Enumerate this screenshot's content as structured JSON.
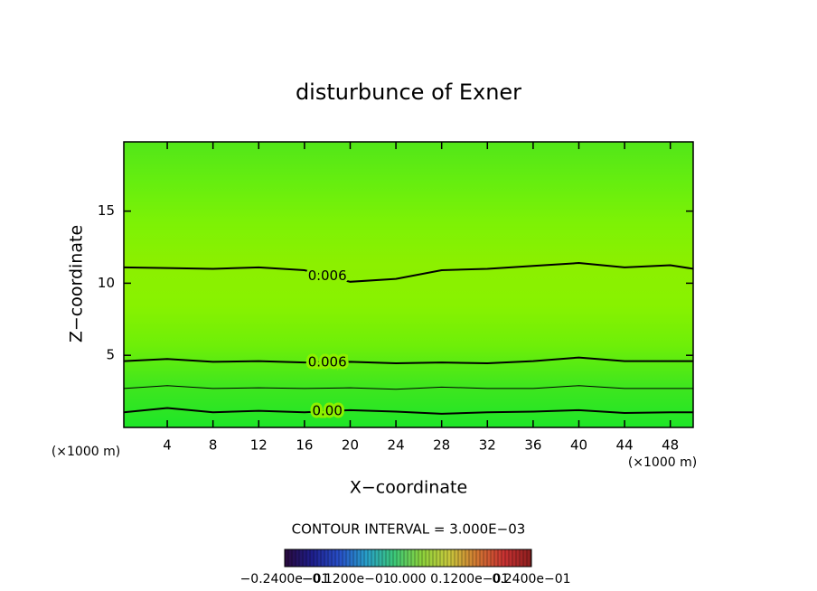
{
  "chart_data": {
    "type": "contour",
    "title": "disturbunce of Exner",
    "xlabel": "X−coordinate",
    "ylabel": "Z−coordinate",
    "x_unit_left": "(×1000 m)",
    "x_unit_right": "(×1000 m)",
    "xlim": [
      0.2,
      50
    ],
    "ylim": [
      0,
      19.8
    ],
    "xticks": [
      4,
      8,
      12,
      16,
      20,
      24,
      28,
      32,
      36,
      40,
      44,
      48
    ],
    "yticks": [
      5,
      10,
      15
    ],
    "fill_colors": [
      "#52e619",
      "#66ee0f",
      "#7df205",
      "#8cf000",
      "#88f200",
      "#6eef08",
      "#3fe61e",
      "#1ee628"
    ],
    "contours": [
      {
        "label": "0.006",
        "line_width": 2,
        "x": [
          0.2,
          4,
          8,
          12,
          16,
          20,
          24,
          28,
          32,
          36,
          40,
          44,
          48,
          50
        ],
        "y": [
          11.1,
          11.05,
          11.0,
          11.1,
          10.9,
          10.1,
          10.3,
          10.9,
          11.0,
          11.2,
          11.4,
          11.1,
          11.25,
          11.0
        ]
      },
      {
        "label": "0.006",
        "line_width": 2,
        "x": [
          0.2,
          4,
          8,
          12,
          16,
          20,
          24,
          28,
          32,
          36,
          40,
          44,
          48,
          50
        ],
        "y": [
          4.6,
          4.75,
          4.55,
          4.6,
          4.5,
          4.55,
          4.45,
          4.5,
          4.45,
          4.6,
          4.85,
          4.6,
          4.6,
          4.6
        ]
      },
      {
        "line_width": 1,
        "x": [
          0.2,
          4,
          8,
          12,
          16,
          20,
          24,
          28,
          32,
          36,
          40,
          44,
          48,
          50
        ],
        "y": [
          2.7,
          2.9,
          2.7,
          2.75,
          2.7,
          2.75,
          2.65,
          2.8,
          2.7,
          2.7,
          2.9,
          2.7,
          2.7,
          2.7
        ]
      },
      {
        "label": "0.00",
        "line_width": 2,
        "x": [
          0.2,
          4,
          8,
          12,
          16,
          20,
          24,
          28,
          32,
          36,
          40,
          44,
          48,
          50
        ],
        "y": [
          1.05,
          1.35,
          1.05,
          1.15,
          1.05,
          1.2,
          1.1,
          0.95,
          1.05,
          1.1,
          1.2,
          1.0,
          1.05,
          1.05
        ]
      }
    ],
    "contour_interval": "CONTOUR INTERVAL = 3.000E−03",
    "colorbar": {
      "colors": [
        "#2a0a3c",
        "#1e1e8c",
        "#2850c8",
        "#28a0c8",
        "#3cc878",
        "#8cd23c",
        "#c8c83c",
        "#d27832",
        "#c83232",
        "#8c1e1e"
      ],
      "labels": [
        "−0.2400e−01",
        "−0.1200e−01",
        "0.000",
        "0.1200e−01",
        "0.2400e−01"
      ]
    }
  }
}
